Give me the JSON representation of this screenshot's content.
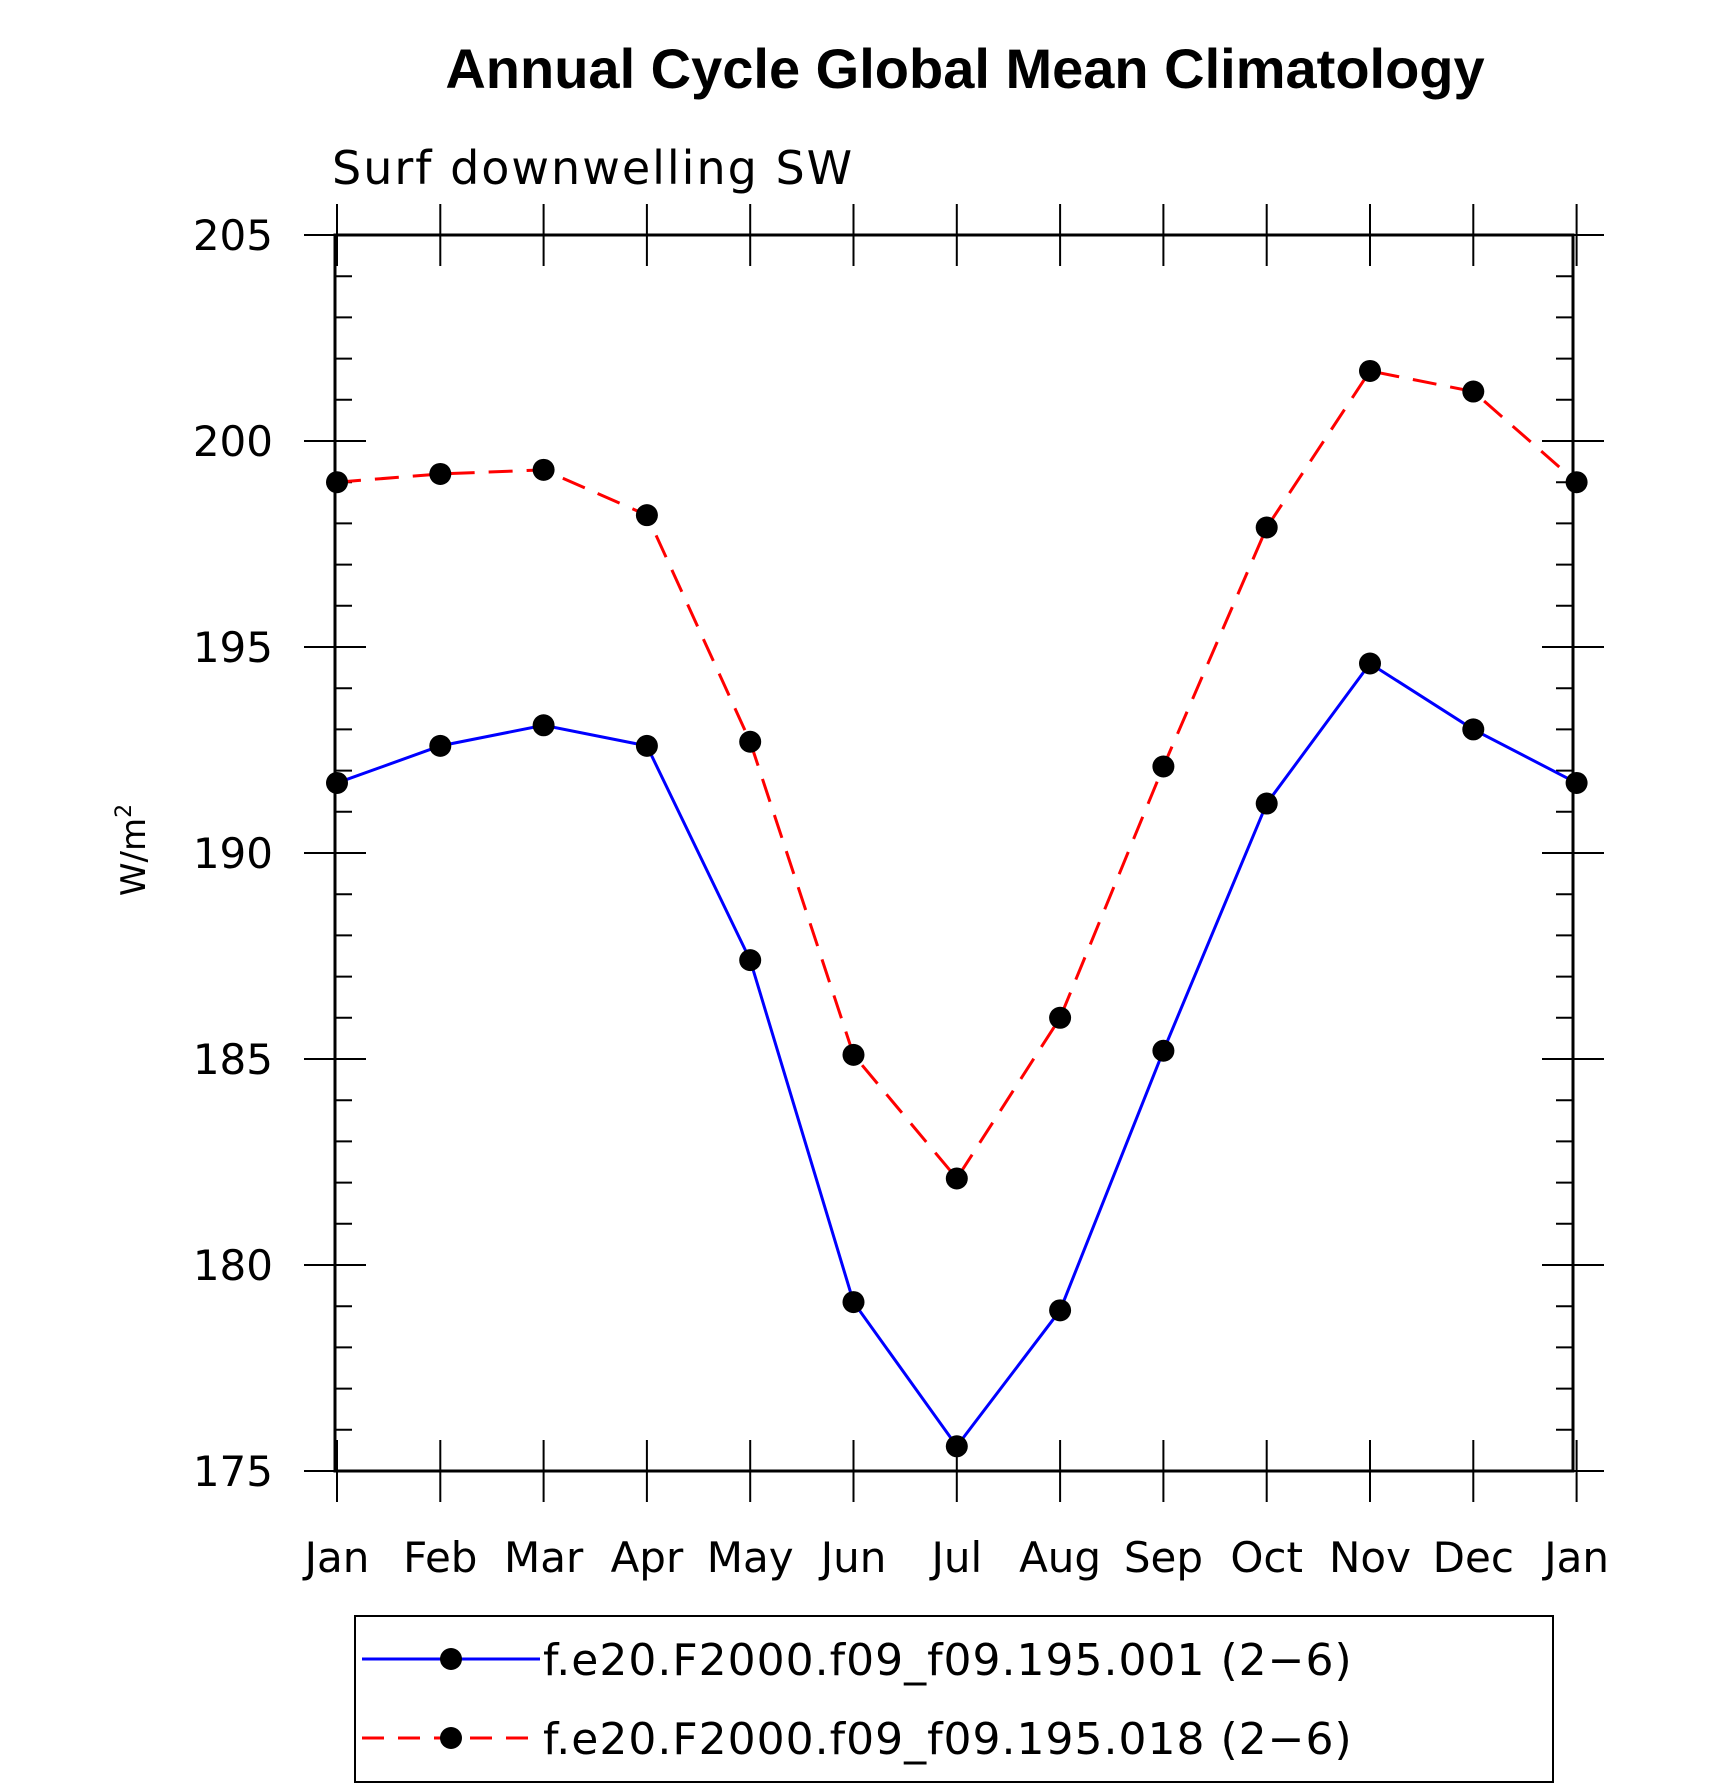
{
  "chart_data": {
    "type": "line",
    "title": "Annual Cycle Global Mean Climatology",
    "subtitle": "Surf downwelling SW",
    "ylabel": "W/m",
    "ylabel_superscript": "2",
    "xlabel": "",
    "categories": [
      "Jan",
      "Feb",
      "Mar",
      "Apr",
      "May",
      "Jun",
      "Jul",
      "Aug",
      "Sep",
      "Oct",
      "Nov",
      "Dec",
      "Jan"
    ],
    "ylim": [
      175,
      205
    ],
    "yticks": [
      175,
      180,
      185,
      190,
      195,
      200,
      205
    ],
    "grid": false,
    "legend_position": "bottom",
    "series": [
      {
        "name": "f.e20.F2000.f09_f09.195.001 (2−6)",
        "color": "#0000ff",
        "line_style": "solid",
        "marker": "filled-circle",
        "values": [
          191.7,
          192.6,
          193.1,
          192.6,
          187.4,
          179.1,
          175.6,
          178.9,
          185.2,
          191.2,
          194.6,
          193.0,
          191.7
        ]
      },
      {
        "name": "f.e20.F2000.f09_f09.195.018 (2−6)",
        "color": "#ff0000",
        "line_style": "dashed",
        "marker": "filled-circle",
        "values": [
          199.0,
          199.2,
          199.3,
          198.2,
          192.7,
          185.1,
          182.1,
          186.0,
          192.1,
          197.9,
          201.7,
          201.2,
          199.0
        ]
      }
    ]
  }
}
